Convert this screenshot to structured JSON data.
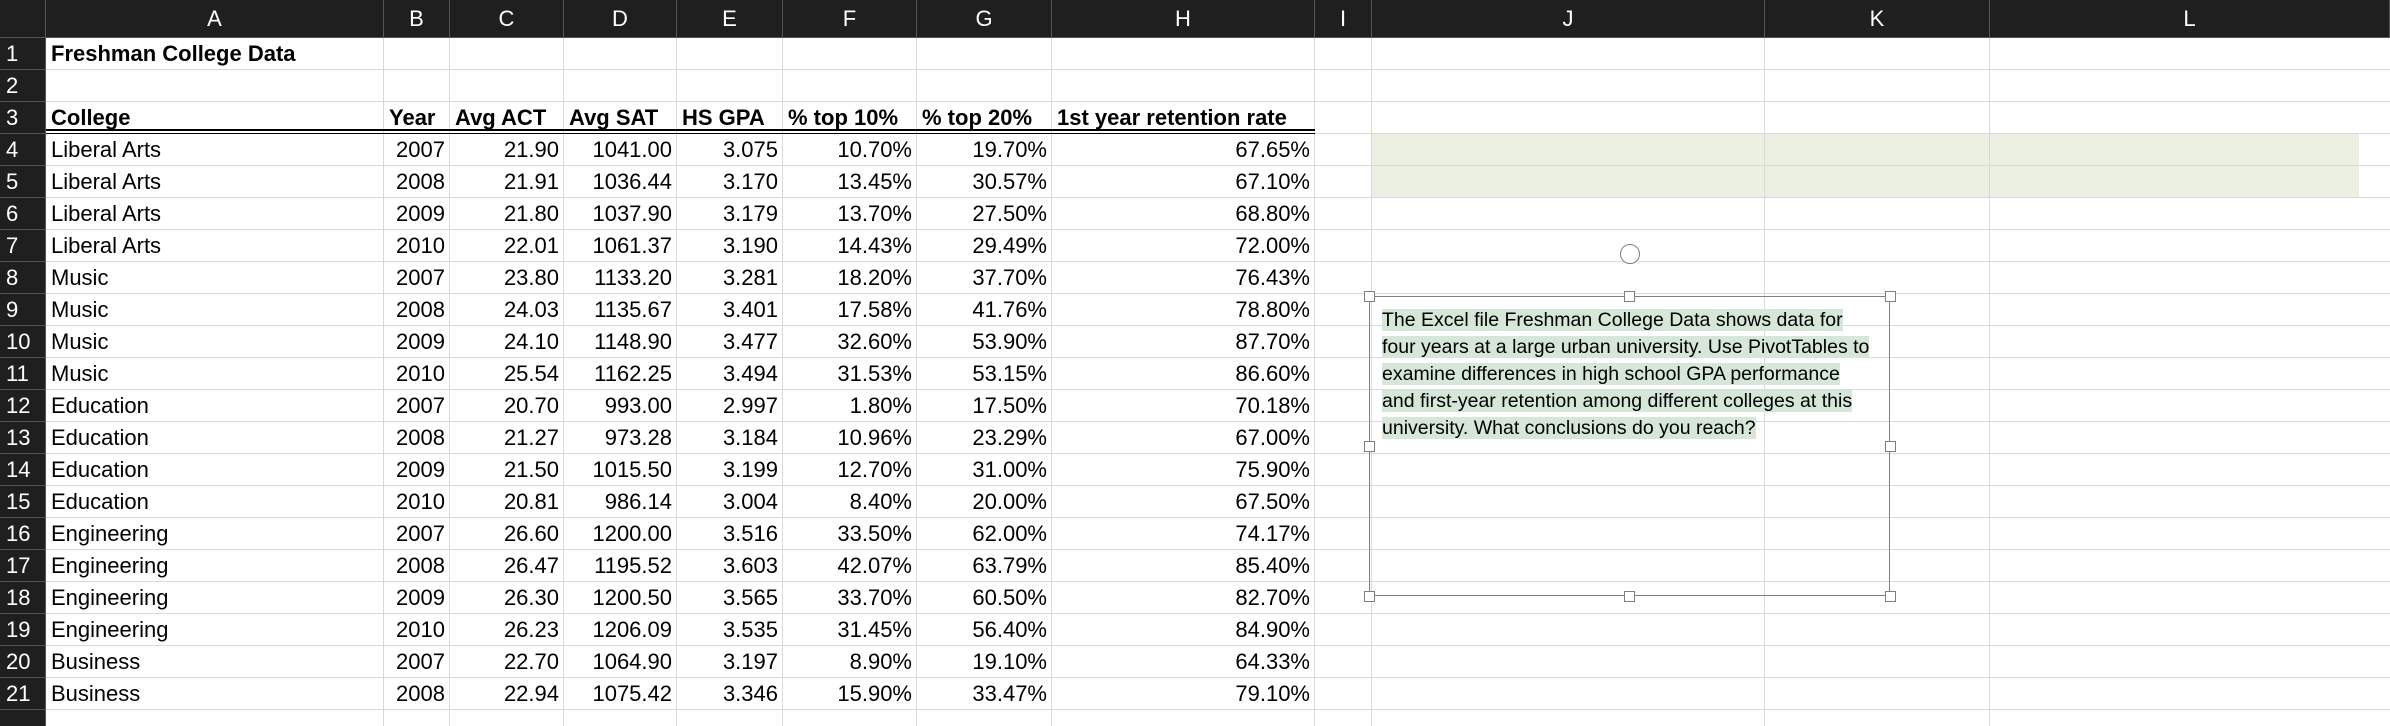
{
  "column_headers": [
    "A",
    "B",
    "C",
    "D",
    "E",
    "F",
    "G",
    "H",
    "I",
    "J",
    "K",
    "L"
  ],
  "row_headers": [
    "1",
    "2",
    "3",
    "4",
    "5",
    "6",
    "7",
    "8",
    "9",
    "10",
    "11",
    "12",
    "13",
    "14",
    "15",
    "16",
    "17",
    "18",
    "19",
    "20",
    "21"
  ],
  "title": "Freshman College Data",
  "table": {
    "header": [
      "College",
      "Year",
      "Avg ACT",
      "Avg SAT",
      "HS GPA",
      "% top 10%",
      "% top 20%",
      "1st year retention rate"
    ],
    "rows": [
      [
        "Liberal Arts",
        "2007",
        "21.90",
        "1041.00",
        "3.075",
        "10.70%",
        "19.70%",
        "67.65%"
      ],
      [
        "Liberal Arts",
        "2008",
        "21.91",
        "1036.44",
        "3.170",
        "13.45%",
        "30.57%",
        "67.10%"
      ],
      [
        "Liberal Arts",
        "2009",
        "21.80",
        "1037.90",
        "3.179",
        "13.70%",
        "27.50%",
        "68.80%"
      ],
      [
        "Liberal Arts",
        "2010",
        "22.01",
        "1061.37",
        "3.190",
        "14.43%",
        "29.49%",
        "72.00%"
      ],
      [
        "Music",
        "2007",
        "23.80",
        "1133.20",
        "3.281",
        "18.20%",
        "37.70%",
        "76.43%"
      ],
      [
        "Music",
        "2008",
        "24.03",
        "1135.67",
        "3.401",
        "17.58%",
        "41.76%",
        "78.80%"
      ],
      [
        "Music",
        "2009",
        "24.10",
        "1148.90",
        "3.477",
        "32.60%",
        "53.90%",
        "87.70%"
      ],
      [
        "Music",
        "2010",
        "25.54",
        "1162.25",
        "3.494",
        "31.53%",
        "53.15%",
        "86.60%"
      ],
      [
        "Education",
        "2007",
        "20.70",
        "993.00",
        "2.997",
        "1.80%",
        "17.50%",
        "70.18%"
      ],
      [
        "Education",
        "2008",
        "21.27",
        "973.28",
        "3.184",
        "10.96%",
        "23.29%",
        "67.00%"
      ],
      [
        "Education",
        "2009",
        "21.50",
        "1015.50",
        "3.199",
        "12.70%",
        "31.00%",
        "75.90%"
      ],
      [
        "Education",
        "2010",
        "20.81",
        "986.14",
        "3.004",
        "8.40%",
        "20.00%",
        "67.50%"
      ],
      [
        "Engineering",
        "2007",
        "26.60",
        "1200.00",
        "3.516",
        "33.50%",
        "62.00%",
        "74.17%"
      ],
      [
        "Engineering",
        "2008",
        "26.47",
        "1195.52",
        "3.603",
        "42.07%",
        "63.79%",
        "85.40%"
      ],
      [
        "Engineering",
        "2009",
        "26.30",
        "1200.50",
        "3.565",
        "33.70%",
        "60.50%",
        "82.70%"
      ],
      [
        "Engineering",
        "2010",
        "26.23",
        "1206.09",
        "3.535",
        "31.45%",
        "56.40%",
        "84.90%"
      ],
      [
        "Business",
        "2007",
        "22.70",
        "1064.90",
        "3.197",
        "8.90%",
        "19.10%",
        "64.33%"
      ],
      [
        "Business",
        "2008",
        "22.94",
        "1075.42",
        "3.346",
        "15.90%",
        "33.47%",
        "79.10%"
      ]
    ]
  },
  "text_box": "The Excel file Freshman College Data shows data for four years at a large urban university. Use PivotTables to examine differences in high school GPA performance and first-year retention among different colleges at this university. What conclusions do you reach?"
}
